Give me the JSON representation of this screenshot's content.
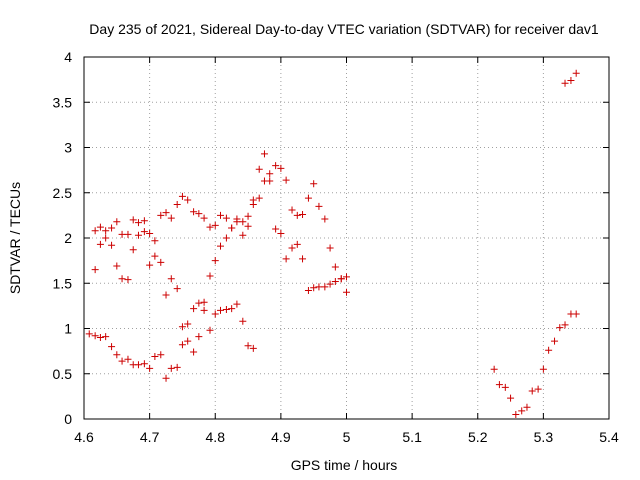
{
  "chart_data": {
    "type": "scatter",
    "title": "Day 235 of 2021, Sidereal Day-to-day VTEC variation (SDTVAR) for receiver dav1",
    "xlabel": "GPS time / hours",
    "ylabel": "SDTVAR / TECUs",
    "xlim": [
      4.6,
      5.4
    ],
    "ylim": [
      0,
      4
    ],
    "xticks": [
      4.6,
      4.7,
      4.8,
      4.9,
      5.0,
      5.1,
      5.2,
      5.3,
      5.4
    ],
    "xtick_labels": [
      "4.6",
      "4.7",
      "4.8",
      "4.9",
      "5",
      "5.1",
      "5.2",
      "5.3",
      "5.4"
    ],
    "yticks": [
      0,
      0.5,
      1,
      1.5,
      2,
      2.5,
      3,
      3.5,
      4
    ],
    "ytick_labels": [
      "0",
      "0.5",
      "1",
      "1.5",
      "2",
      "2.5",
      "3",
      "3.5",
      "4"
    ],
    "grid": true,
    "marker": "+",
    "marker_color": "#cc0000",
    "series": [
      {
        "name": "dav1",
        "points": [
          [
            4.608,
            0.94
          ],
          [
            4.617,
            0.92
          ],
          [
            4.625,
            0.9
          ],
          [
            4.633,
            0.91
          ],
          [
            4.642,
            0.8
          ],
          [
            4.65,
            0.71
          ],
          [
            4.658,
            0.64
          ],
          [
            4.667,
            0.66
          ],
          [
            4.675,
            0.6
          ],
          [
            4.683,
            0.6
          ],
          [
            4.692,
            0.61
          ],
          [
            4.7,
            0.56
          ],
          [
            4.708,
            0.69
          ],
          [
            4.717,
            0.71
          ],
          [
            4.725,
            0.45
          ],
          [
            4.733,
            0.56
          ],
          [
            4.742,
            0.57
          ],
          [
            4.75,
            0.82
          ],
          [
            4.758,
            0.86
          ],
          [
            4.767,
            0.74
          ],
          [
            4.775,
            0.91
          ],
          [
            4.783,
            1.2
          ],
          [
            4.792,
            0.98
          ],
          [
            4.8,
            1.16
          ],
          [
            4.808,
            1.2
          ],
          [
            4.817,
            1.21
          ],
          [
            4.825,
            1.22
          ],
          [
            4.833,
            1.27
          ],
          [
            4.842,
            1.08
          ],
          [
            4.85,
            0.81
          ],
          [
            4.858,
            0.78
          ],
          [
            4.617,
            1.65
          ],
          [
            4.625,
            1.93
          ],
          [
            4.633,
            2.0
          ],
          [
            4.642,
            1.92
          ],
          [
            4.65,
            1.69
          ],
          [
            4.658,
            1.55
          ],
          [
            4.667,
            1.54
          ],
          [
            4.675,
            1.87
          ],
          [
            4.683,
            2.03
          ],
          [
            4.692,
            2.07
          ],
          [
            4.7,
            1.7
          ],
          [
            4.708,
            1.8
          ],
          [
            4.717,
            1.73
          ],
          [
            4.725,
            1.37
          ],
          [
            4.733,
            1.55
          ],
          [
            4.742,
            1.44
          ],
          [
            4.75,
            1.02
          ],
          [
            4.758,
            1.05
          ],
          [
            4.767,
            1.22
          ],
          [
            4.775,
            1.28
          ],
          [
            4.783,
            1.29
          ],
          [
            4.792,
            1.58
          ],
          [
            4.8,
            1.75
          ],
          [
            4.808,
            1.91
          ],
          [
            4.817,
            2.0
          ],
          [
            4.825,
            2.11
          ],
          [
            4.833,
            2.18
          ],
          [
            4.842,
            2.03
          ],
          [
            4.85,
            2.13
          ],
          [
            4.858,
            2.37
          ],
          [
            4.867,
            2.44
          ],
          [
            4.875,
            2.63
          ],
          [
            4.883,
            2.63
          ],
          [
            4.892,
            2.1
          ],
          [
            4.9,
            2.05
          ],
          [
            4.908,
            1.77
          ],
          [
            4.917,
            1.89
          ],
          [
            4.925,
            1.93
          ],
          [
            4.933,
            1.77
          ],
          [
            4.942,
            1.42
          ],
          [
            4.95,
            1.45
          ],
          [
            4.958,
            1.46
          ],
          [
            4.967,
            1.46
          ],
          [
            4.975,
            1.49
          ],
          [
            4.983,
            1.52
          ],
          [
            4.992,
            1.55
          ],
          [
            5.0,
            1.4
          ],
          [
            4.617,
            2.08
          ],
          [
            4.625,
            2.12
          ],
          [
            4.633,
            2.08
          ],
          [
            4.642,
            2.11
          ],
          [
            4.65,
            2.18
          ],
          [
            4.658,
            2.04
          ],
          [
            4.667,
            2.04
          ],
          [
            4.675,
            2.2
          ],
          [
            4.683,
            2.17
          ],
          [
            4.692,
            2.19
          ],
          [
            4.7,
            2.05
          ],
          [
            4.708,
            1.97
          ],
          [
            4.717,
            2.25
          ],
          [
            4.725,
            2.28
          ],
          [
            4.733,
            2.22
          ],
          [
            4.742,
            2.37
          ],
          [
            4.75,
            2.46
          ],
          [
            4.758,
            2.42
          ],
          [
            4.767,
            2.29
          ],
          [
            4.775,
            2.27
          ],
          [
            4.783,
            2.22
          ],
          [
            4.792,
            2.12
          ],
          [
            4.8,
            2.14
          ],
          [
            4.808,
            2.25
          ],
          [
            4.817,
            2.22
          ],
          [
            4.825,
            2.11
          ],
          [
            4.833,
            2.21
          ],
          [
            4.842,
            2.18
          ],
          [
            4.85,
            2.24
          ],
          [
            4.858,
            2.42
          ],
          [
            4.867,
            2.76
          ],
          [
            4.875,
            2.93
          ],
          [
            4.883,
            2.71
          ],
          [
            4.892,
            2.8
          ],
          [
            4.9,
            2.77
          ],
          [
            4.908,
            2.64
          ],
          [
            4.917,
            2.31
          ],
          [
            4.925,
            2.25
          ],
          [
            4.933,
            2.26
          ],
          [
            4.942,
            2.44
          ],
          [
            4.95,
            2.6
          ],
          [
            4.958,
            2.35
          ],
          [
            4.967,
            2.21
          ],
          [
            4.975,
            1.89
          ],
          [
            4.983,
            1.68
          ],
          [
            4.992,
            1.55
          ],
          [
            5.0,
            1.57
          ],
          [
            5.225,
            0.55
          ],
          [
            5.233,
            0.38
          ],
          [
            5.242,
            0.35
          ],
          [
            5.25,
            0.23
          ],
          [
            5.258,
            0.05
          ],
          [
            5.267,
            0.09
          ],
          [
            5.275,
            0.13
          ],
          [
            5.283,
            0.31
          ],
          [
            5.292,
            0.33
          ],
          [
            5.3,
            0.55
          ],
          [
            5.308,
            0.76
          ],
          [
            5.317,
            0.86
          ],
          [
            5.325,
            1.01
          ],
          [
            5.333,
            1.04
          ],
          [
            5.342,
            1.16
          ],
          [
            5.35,
            1.16
          ],
          [
            5.333,
            3.71
          ],
          [
            5.342,
            3.74
          ],
          [
            5.35,
            3.82
          ]
        ]
      }
    ]
  }
}
